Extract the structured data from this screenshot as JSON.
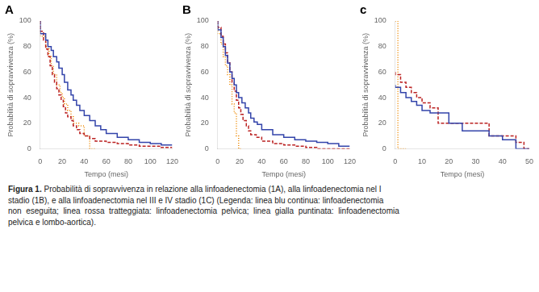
{
  "chart_data": [
    {
      "type": "step",
      "title": "A",
      "x_label": "Tempo (mesi)",
      "y_label": "Probabilità di sopravvivenza (%)",
      "xlim": [
        0,
        120
      ],
      "xticks": [
        0,
        20,
        40,
        60,
        80,
        100,
        120
      ],
      "ylim": [
        0,
        100
      ],
      "yticks": [
        0,
        20,
        40,
        60,
        80,
        100
      ],
      "grid": false,
      "series": [
        {
          "color": "#3344aa",
          "line_style": "solid",
          "x": [
            0,
            5,
            7,
            10,
            12,
            15,
            17,
            20,
            22,
            25,
            28,
            30,
            33,
            36,
            40,
            45,
            50,
            55,
            60,
            70,
            80,
            90,
            100,
            110,
            120
          ],
          "values": [
            100,
            90,
            85,
            80,
            77,
            72,
            68,
            63,
            58,
            52,
            46,
            42,
            38,
            34,
            30,
            26,
            22,
            18,
            15,
            12,
            9,
            7,
            5,
            4,
            3
          ]
        },
        {
          "color": "#bb2222",
          "line_style": "dashed",
          "x": [
            0,
            3,
            5,
            7,
            9,
            11,
            13,
            15,
            17,
            19,
            21,
            23,
            25,
            28,
            30,
            33,
            36,
            40,
            45,
            50,
            60,
            70,
            80,
            90,
            110,
            120
          ],
          "values": [
            100,
            92,
            85,
            78,
            72,
            65,
            58,
            52,
            47,
            42,
            38,
            33,
            28,
            25,
            22,
            18,
            15,
            12,
            10,
            8,
            6,
            5,
            4,
            3,
            2,
            1
          ]
        },
        {
          "color": "#ee8800",
          "line_style": "dotted",
          "x": [
            0,
            5,
            8,
            10,
            12,
            15,
            18,
            20,
            22,
            25,
            28,
            30,
            35,
            40,
            45,
            50
          ],
          "values": [
            100,
            88,
            80,
            72,
            65,
            58,
            50,
            44,
            40,
            35,
            30,
            25,
            20,
            18,
            10,
            0
          ]
        }
      ]
    },
    {
      "type": "step",
      "title": "B",
      "x_label": "Tempo (mesi)",
      "y_label": "Probabilità di sopravvivenza (%)",
      "xlim": [
        0,
        120
      ],
      "xticks": [
        0,
        20,
        40,
        60,
        80,
        100,
        120
      ],
      "ylim": [
        0,
        100
      ],
      "yticks": [
        0,
        20,
        40,
        60,
        80,
        100
      ],
      "grid": false,
      "series": [
        {
          "color": "#3344aa",
          "line_style": "solid",
          "x": [
            0,
            3,
            5,
            7,
            9,
            11,
            13,
            15,
            17,
            19,
            22,
            25,
            28,
            30,
            33,
            36,
            40,
            50,
            60,
            70,
            80,
            90,
            100,
            110,
            120
          ],
          "values": [
            100,
            93,
            87,
            80,
            73,
            67,
            60,
            55,
            50,
            44,
            40,
            36,
            32,
            28,
            24,
            21,
            19,
            15,
            11,
            9,
            7,
            6,
            5,
            4,
            2
          ]
        },
        {
          "color": "#bb2222",
          "line_style": "dashed",
          "x": [
            0,
            3,
            5,
            7,
            9,
            11,
            13,
            15,
            17,
            19,
            21,
            23,
            26,
            28,
            30,
            35,
            40,
            50,
            60,
            70,
            80,
            90,
            100,
            110,
            120
          ],
          "values": [
            100,
            95,
            88,
            82,
            75,
            68,
            60,
            52,
            45,
            38,
            32,
            27,
            22,
            18,
            14,
            11,
            9,
            6,
            4,
            3,
            2,
            1,
            0,
            0,
            0
          ]
        },
        {
          "color": "#ee8800",
          "line_style": "dotted",
          "x": [
            0,
            3,
            5,
            7,
            9,
            11,
            13,
            15,
            17,
            19,
            22
          ],
          "values": [
            100,
            90,
            82,
            72,
            65,
            58,
            50,
            35,
            28,
            10,
            0
          ]
        }
      ]
    },
    {
      "type": "step",
      "title": "c",
      "x_label": "Tempo (mesi)",
      "y_label": "Probabilità di sopravvivenza (%)",
      "xlim": [
        0,
        50
      ],
      "xticks": [
        0,
        10,
        20,
        30,
        40,
        50
      ],
      "ylim": [
        0,
        100
      ],
      "yticks": [
        0,
        20,
        40,
        60,
        80,
        100
      ],
      "grid": false,
      "series": [
        {
          "color": "#3344aa",
          "line_style": "solid",
          "x": [
            0,
            2,
            4,
            6,
            8,
            10,
            13,
            16,
            20,
            25,
            35,
            40,
            45,
            50
          ],
          "values": [
            50,
            48,
            44,
            40,
            37,
            34,
            30,
            28,
            28,
            20,
            14,
            10,
            7,
            0
          ]
        },
        {
          "color": "#bb2222",
          "line_style": "dashed",
          "x": [
            0,
            2,
            4,
            6,
            8,
            10,
            13,
            16,
            20,
            25,
            30,
            35,
            40,
            45,
            48,
            50
          ],
          "values": [
            60,
            58,
            52,
            48,
            44,
            40,
            36,
            32,
            20,
            20,
            20,
            20,
            10,
            10,
            5,
            0
          ]
        },
        {
          "color": "#ee8800",
          "line_style": "dotted",
          "x": [
            0,
            1,
            2,
            3,
            4
          ],
          "values": [
            100,
            100,
            0,
            0,
            0
          ]
        }
      ]
    }
  ],
  "caption_bold": "Figura 1.",
  "caption": " Probabilità di sopravvivenza in relazione alla linfoadenectomia (1A), alla linfoadenectomia nel I\nstadio (1B), e alla linfoadenectomia nel III e IV stadio (1C) (Legenda: linea blu continua: linfoadenectomia\nnon  eseguita;  linea  rossa  tratteggiata:  linfoadenectomia  pelvica;  linea  gialla  puntinata:  linfoadenectomia\npelvica e lombo-aortica)."
}
